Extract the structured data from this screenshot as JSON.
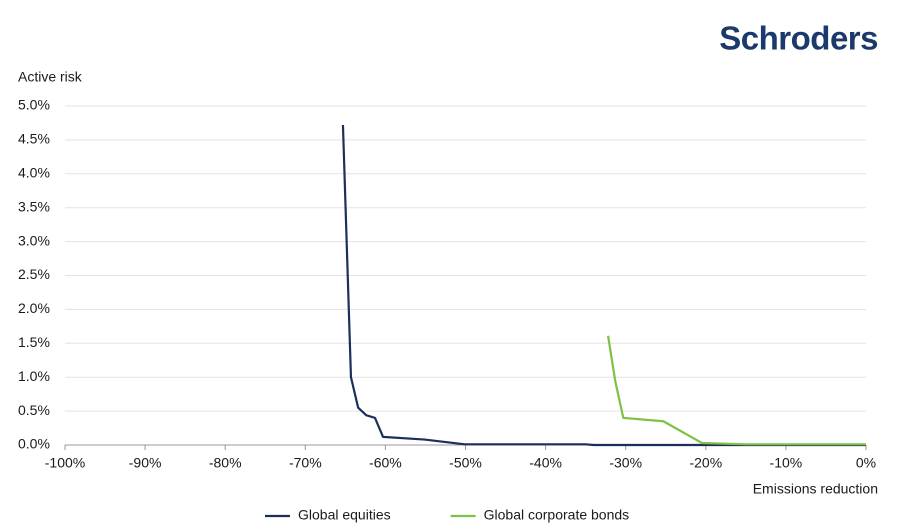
{
  "header": {
    "logo": "Schroders"
  },
  "chart_data": {
    "type": "line",
    "y_label": "Active risk",
    "x_label": "Emissions reduction",
    "xlim": [
      -100,
      0
    ],
    "ylim": [
      0,
      5
    ],
    "xticks": [
      {
        "value": -100,
        "label": "-100%"
      },
      {
        "value": -90,
        "label": "-90%"
      },
      {
        "value": -80,
        "label": "-80%"
      },
      {
        "value": -70,
        "label": "-70%"
      },
      {
        "value": -60,
        "label": "-60%"
      },
      {
        "value": -50,
        "label": "-50%"
      },
      {
        "value": -40,
        "label": "-40%"
      },
      {
        "value": -30,
        "label": "-30%"
      },
      {
        "value": -20,
        "label": "-20%"
      },
      {
        "value": -10,
        "label": "-10%"
      },
      {
        "value": 0,
        "label": "0%"
      }
    ],
    "yticks": [
      {
        "value": 0,
        "label": "0.0%"
      },
      {
        "value": 0.5,
        "label": "0.5%"
      },
      {
        "value": 1,
        "label": "1.0%"
      },
      {
        "value": 1.5,
        "label": "1.5%"
      },
      {
        "value": 2,
        "label": "2.0%"
      },
      {
        "value": 2.5,
        "label": "2.5%"
      },
      {
        "value": 3,
        "label": "3.0%"
      },
      {
        "value": 3.5,
        "label": "3.5%"
      },
      {
        "value": 4,
        "label": "4.0%"
      },
      {
        "value": 4.5,
        "label": "4.5%"
      },
      {
        "value": 5,
        "label": "5.0%"
      }
    ],
    "grid": true,
    "legend": "bottom",
    "series": [
      {
        "name": "Global equities",
        "color": "#1b2f5c",
        "x": [
          -65.3,
          -64.3,
          -63.4,
          -62.4,
          -61.3,
          -60.3,
          -55.1,
          -50.1,
          -35,
          -34,
          0
        ],
        "values": [
          4.72,
          1.0,
          0.55,
          0.44,
          0.4,
          0.12,
          0.08,
          0.01,
          0.01,
          0,
          0
        ]
      },
      {
        "name": "Global corporate bonds",
        "color": "#7dc242",
        "x": [
          -32.2,
          -31.3,
          -30.3,
          -25.3,
          -20.5,
          -15,
          0
        ],
        "values": [
          1.61,
          0.94,
          0.4,
          0.35,
          0.03,
          0.01,
          0.01
        ]
      }
    ]
  }
}
